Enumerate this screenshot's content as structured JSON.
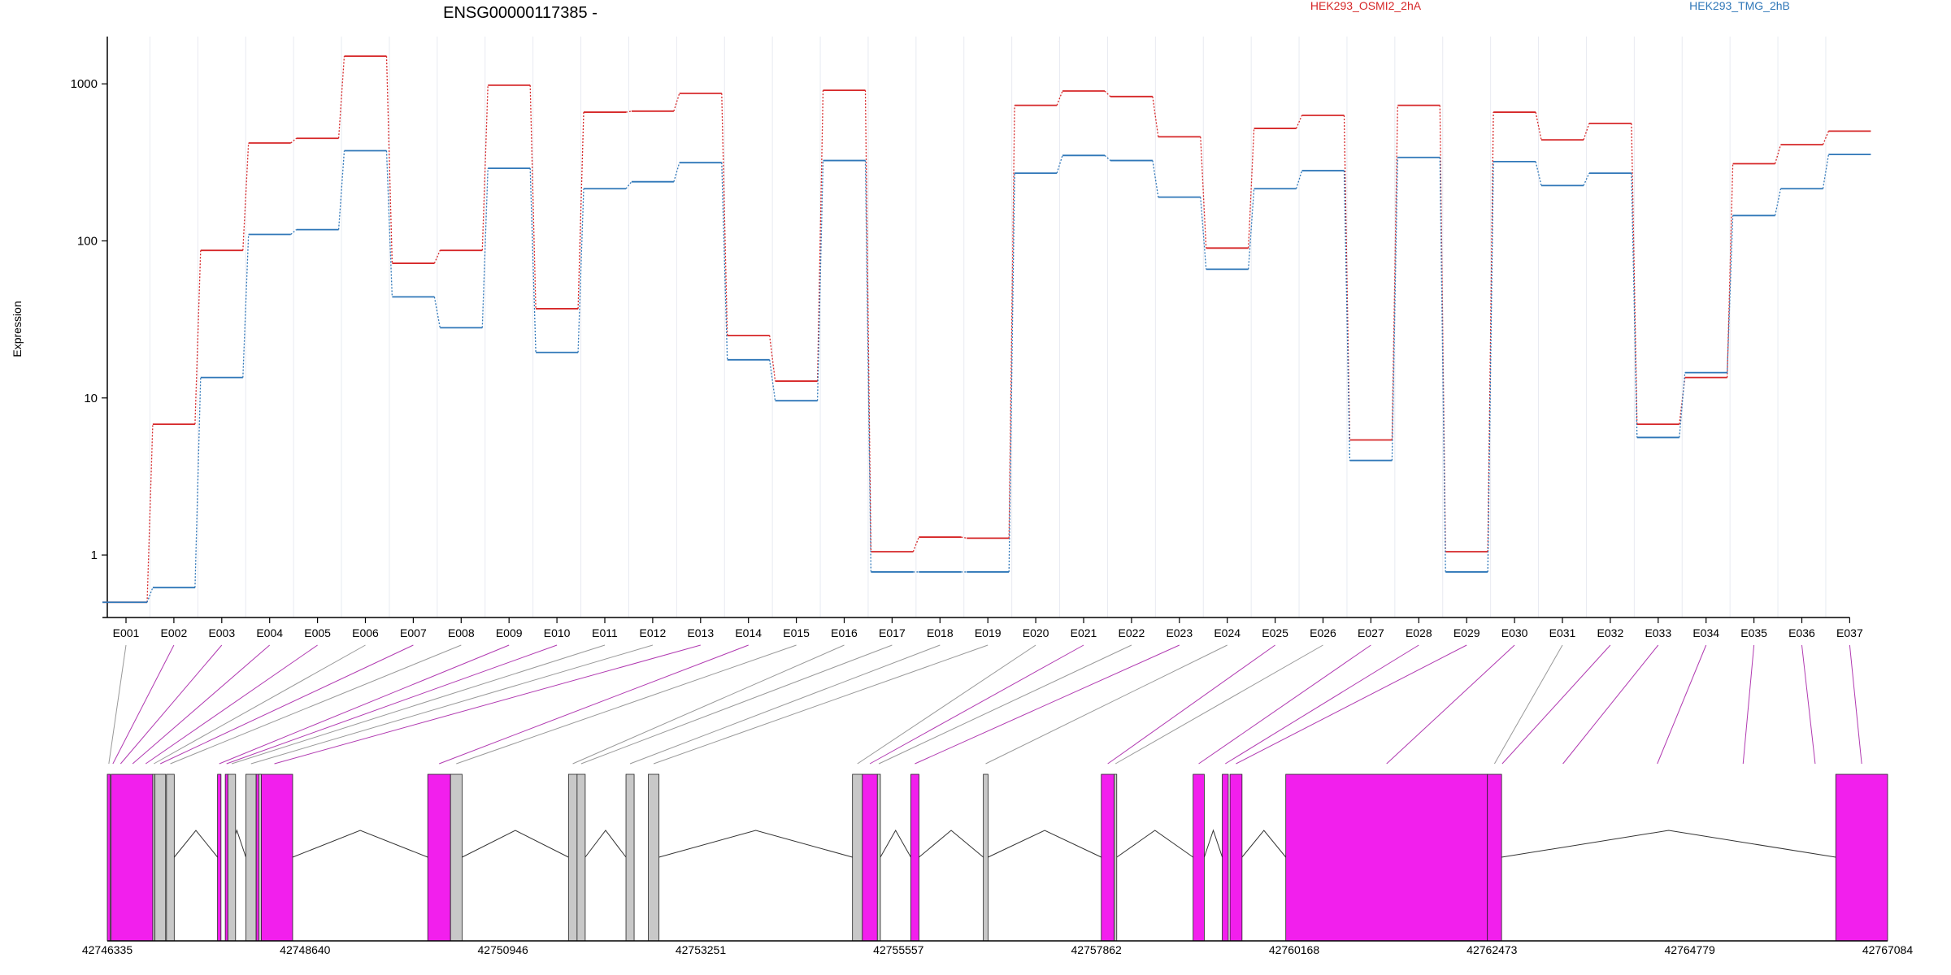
{
  "chart_data": {
    "type": "line",
    "title": "ENSG00000117385 -",
    "ylabel": "Expression",
    "xlabel": "",
    "yscale": "log",
    "ylim": [
      0.4,
      2000
    ],
    "yticks": [
      1,
      10,
      100,
      1000
    ],
    "ytick_labels": [
      "1",
      "10",
      "100",
      "1000"
    ],
    "grid": true,
    "legend": "top",
    "categories": [
      "E001",
      "E002",
      "E003",
      "E004",
      "E005",
      "E006",
      "E007",
      "E008",
      "E009",
      "E010",
      "E011",
      "E012",
      "E013",
      "E014",
      "E015",
      "E016",
      "E017",
      "E018",
      "E019",
      "E020",
      "E021",
      "E022",
      "E023",
      "E024",
      "E025",
      "E026",
      "E027",
      "E028",
      "E029",
      "E030",
      "E031",
      "E032",
      "E033",
      "E034",
      "E035",
      "E036",
      "E037"
    ],
    "series": [
      {
        "name": "HEK293_OSMI2_2hA",
        "color": "#d62728",
        "values": [
          0.5,
          6.8,
          87,
          420,
          450,
          1500,
          72,
          87,
          980,
          37,
          660,
          670,
          870,
          25,
          12.8,
          910,
          1.05,
          1.3,
          1.28,
          730,
          900,
          830,
          460,
          90,
          520,
          630,
          5.4,
          730,
          1.05,
          660,
          440,
          560,
          6.8,
          13.5,
          310,
          410,
          500
        ]
      },
      {
        "name": "HEK293_TMG_2hB",
        "color": "#2f77b8",
        "values": [
          0.5,
          0.62,
          13.5,
          110,
          118,
          375,
          44,
          28,
          290,
          19.5,
          215,
          238,
          315,
          17.5,
          9.6,
          325,
          0.78,
          0.78,
          0.78,
          270,
          350,
          325,
          190,
          66,
          215,
          280,
          4,
          340,
          0.78,
          320,
          225,
          270,
          5.6,
          14.5,
          145,
          215,
          355
        ]
      }
    ],
    "genome_axis": {
      "range": [
        42746335,
        42767084
      ],
      "tick_labels": [
        "42746335",
        "42748640",
        "42750946",
        "42753251",
        "42755557",
        "42757862",
        "42760168",
        "42762473",
        "42764779",
        "42767084"
      ]
    },
    "exon_blocks": [
      {
        "start": 42746335,
        "end": 42746370,
        "color": "#f21fed"
      },
      {
        "start": 42746380,
        "end": 42746865,
        "color": "#f21fed"
      },
      {
        "start": 42746865,
        "end": 42746890,
        "color": "#c8c8c8"
      },
      {
        "start": 42746890,
        "end": 42747015,
        "color": "#c8c8c8"
      },
      {
        "start": 42747025,
        "end": 42747115,
        "color": "#c8c8c8"
      },
      {
        "start": 42747620,
        "end": 42747660,
        "color": "#f21fed"
      },
      {
        "start": 42747710,
        "end": 42747740,
        "color": "#f21fed"
      },
      {
        "start": 42747740,
        "end": 42747830,
        "color": "#c8c8c8"
      },
      {
        "start": 42747950,
        "end": 42748070,
        "color": "#c8c8c8"
      },
      {
        "start": 42748070,
        "end": 42748495,
        "color": "#f21fed"
      },
      {
        "start": 42748100,
        "end": 42748130,
        "color": "#c8c8c8"
      },
      {
        "start": 42750070,
        "end": 42750335,
        "color": "#f21fed"
      },
      {
        "start": 42750335,
        "end": 42750470,
        "color": "#c8c8c8"
      },
      {
        "start": 42751710,
        "end": 42751810,
        "color": "#c8c8c8"
      },
      {
        "start": 42751810,
        "end": 42751905,
        "color": "#c8c8c8"
      },
      {
        "start": 42752380,
        "end": 42752475,
        "color": "#c8c8c8"
      },
      {
        "start": 42752640,
        "end": 42752765,
        "color": "#c8c8c8"
      },
      {
        "start": 42755020,
        "end": 42755135,
        "color": "#c8c8c8"
      },
      {
        "start": 42755135,
        "end": 42755310,
        "color": "#f21fed"
      },
      {
        "start": 42755310,
        "end": 42755345,
        "color": "#c8c8c8"
      },
      {
        "start": 42755700,
        "end": 42755795,
        "color": "#f21fed"
      },
      {
        "start": 42756545,
        "end": 42756600,
        "color": "#c8c8c8"
      },
      {
        "start": 42757920,
        "end": 42758070,
        "color": "#f21fed"
      },
      {
        "start": 42758070,
        "end": 42758100,
        "color": "#c8c8c8"
      },
      {
        "start": 42758990,
        "end": 42759120,
        "color": "#f21fed"
      },
      {
        "start": 42759330,
        "end": 42759400,
        "color": "#f21fed"
      },
      {
        "start": 42759420,
        "end": 42759560,
        "color": "#f21fed"
      },
      {
        "start": 42760070,
        "end": 42762420,
        "color": "#f21fed"
      },
      {
        "start": 42762420,
        "end": 42762585,
        "color": "#f21fed"
      },
      {
        "start": 42766480,
        "end": 42767084,
        "color": "#f21fed"
      }
    ],
    "connector_colors": [
      "#999999",
      "#b13ab1"
    ],
    "introns": [
      {
        "s": 42747115,
        "e": 42747620
      },
      {
        "s": 42747740,
        "e": 42747950
      },
      {
        "s": 42748495,
        "e": 42750070
      },
      {
        "s": 42750470,
        "e": 42751710
      },
      {
        "s": 42751905,
        "e": 42752380
      },
      {
        "s": 42752765,
        "e": 42755020
      },
      {
        "s": 42755345,
        "e": 42755700
      },
      {
        "s": 42755795,
        "e": 42756545
      },
      {
        "s": 42756600,
        "e": 42757920
      },
      {
        "s": 42758100,
        "e": 42758990
      },
      {
        "s": 42759120,
        "e": 42759330
      },
      {
        "s": 42759560,
        "e": 42760070
      },
      {
        "s": 42762585,
        "e": 42766480
      }
    ],
    "exon_map": [
      {
        "s": 42746335,
        "e": 42746370,
        "c": 0
      },
      {
        "s": 42746380,
        "e": 42746420,
        "c": 1
      },
      {
        "s": 42746420,
        "e": 42746560,
        "c": 1
      },
      {
        "s": 42746560,
        "e": 42746700,
        "c": 1
      },
      {
        "s": 42746700,
        "e": 42746865,
        "c": 1
      },
      {
        "s": 42746865,
        "e": 42746890,
        "c": 0
      },
      {
        "s": 42746890,
        "e": 42747015,
        "c": 1
      },
      {
        "s": 42747025,
        "e": 42747115,
        "c": 0
      },
      {
        "s": 42747620,
        "e": 42747660,
        "c": 1
      },
      {
        "s": 42747710,
        "e": 42747740,
        "c": 1
      },
      {
        "s": 42747740,
        "e": 42747830,
        "c": 0
      },
      {
        "s": 42747950,
        "e": 42748070,
        "c": 0
      },
      {
        "s": 42748070,
        "e": 42748495,
        "c": 1
      },
      {
        "s": 42750070,
        "e": 42750335,
        "c": 1
      },
      {
        "s": 42750335,
        "e": 42750470,
        "c": 0
      },
      {
        "s": 42751710,
        "e": 42751810,
        "c": 0
      },
      {
        "s": 42751810,
        "e": 42751905,
        "c": 0
      },
      {
        "s": 42752380,
        "e": 42752475,
        "c": 0
      },
      {
        "s": 42752640,
        "e": 42752765,
        "c": 0
      },
      {
        "s": 42755020,
        "e": 42755135,
        "c": 0
      },
      {
        "s": 42755135,
        "e": 42755310,
        "c": 1
      },
      {
        "s": 42755310,
        "e": 42755345,
        "c": 0
      },
      {
        "s": 42755700,
        "e": 42755795,
        "c": 1
      },
      {
        "s": 42756545,
        "e": 42756600,
        "c": 0
      },
      {
        "s": 42757920,
        "e": 42758070,
        "c": 1
      },
      {
        "s": 42758070,
        "e": 42758100,
        "c": 0
      },
      {
        "s": 42758990,
        "e": 42759120,
        "c": 1
      },
      {
        "s": 42759330,
        "e": 42759400,
        "c": 1
      },
      {
        "s": 42759420,
        "e": 42759560,
        "c": 1
      },
      {
        "s": 42760070,
        "e": 42762420,
        "c": 1
      },
      {
        "s": 42762420,
        "e": 42762585,
        "c": 0
      },
      {
        "s": 42762585,
        "e": 42762600,
        "c": 1
      },
      {
        "s": 42762600,
        "e": 42764000,
        "c": 1
      },
      {
        "s": 42764000,
        "e": 42764800,
        "c": 1
      },
      {
        "s": 42765000,
        "e": 42765800,
        "c": 1
      },
      {
        "s": 42766000,
        "e": 42766480,
        "c": 1
      },
      {
        "s": 42766480,
        "e": 42767084,
        "c": 1
      }
    ]
  }
}
